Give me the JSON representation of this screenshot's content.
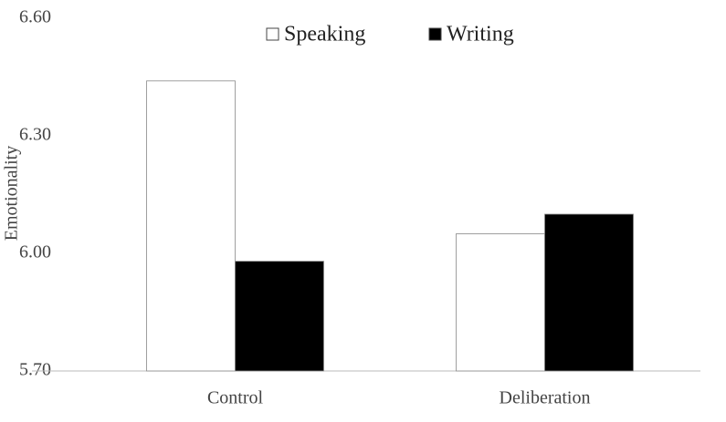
{
  "chart_data": {
    "type": "bar",
    "y_label": "Emotionality",
    "categories": [
      "Control",
      "Deliberation"
    ],
    "series": [
      {
        "name": "Speaking",
        "color": "#ffffff",
        "values": [
          6.44,
          6.05
        ]
      },
      {
        "name": "Writing",
        "color": "#000000",
        "values": [
          5.98,
          6.1
        ]
      }
    ],
    "ylim": [
      5.7,
      6.6
    ],
    "yticks": [
      {
        "value": 5.7,
        "label": "5.70"
      },
      {
        "value": 6.0,
        "label": "6.00"
      },
      {
        "value": 6.3,
        "label": "6.30"
      },
      {
        "value": 6.6,
        "label": "6.60"
      }
    ],
    "grid": false,
    "legend": "top"
  }
}
